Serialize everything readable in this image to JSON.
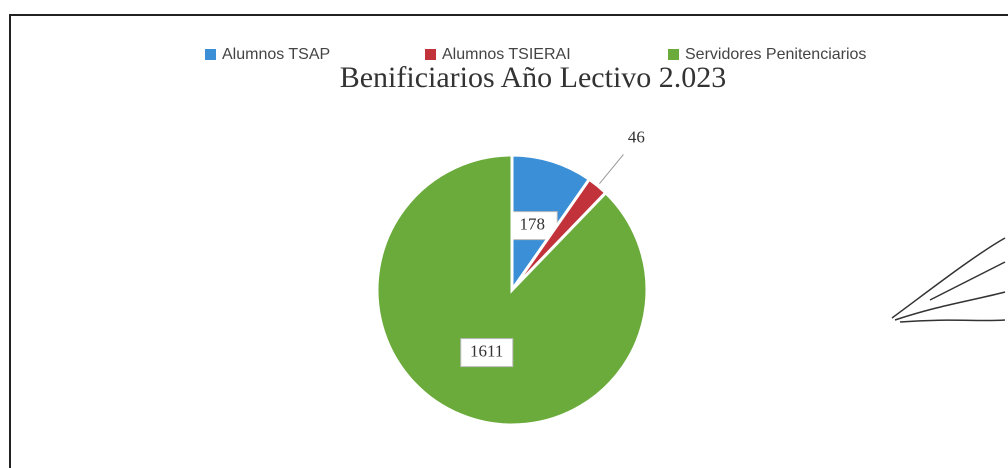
{
  "chart_data": {
    "type": "pie",
    "title": "Benificiarios Año Lectivo 2.023",
    "categories": [
      "Alumnos TSAP",
      "Alumnos TSIERAI",
      "Servidores Penitenciarios"
    ],
    "values": [
      178,
      46,
      1611
    ],
    "colors": [
      "#3b8fd6",
      "#c2323b",
      "#6aab3b"
    ],
    "legend": "top"
  }
}
